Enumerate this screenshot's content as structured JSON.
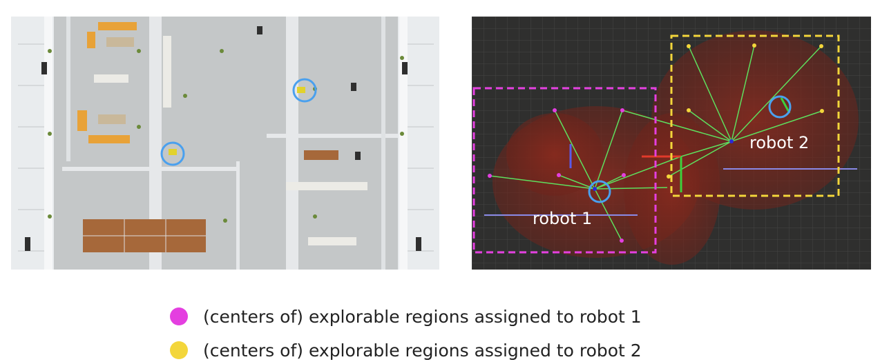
{
  "labels": {
    "robot1": "robot 1",
    "robot2": "robot 2"
  },
  "legend": [
    {
      "text": "(centers of) explorable regions assigned to robot 1",
      "color": "#e43fe0"
    },
    {
      "text": "(centers of) explorable regions assigned to robot 2",
      "color": "#f3d63b"
    }
  ],
  "colors": {
    "robot1_region": "#e43fe0",
    "robot2_region": "#f3d63b",
    "robot_marker": "#4aa0ee",
    "frontier_edge": "#5ee05e"
  }
}
